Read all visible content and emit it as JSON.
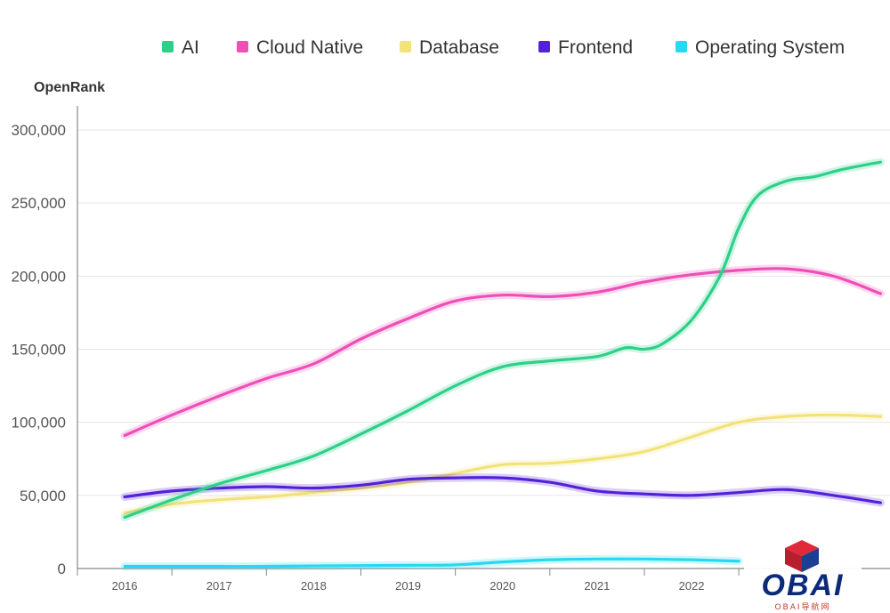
{
  "chart_data": {
    "type": "line",
    "ylabel": "OpenRank",
    "xlabel": "",
    "ylim": [
      0,
      300000
    ],
    "yticks": [
      0,
      50000,
      100000,
      150000,
      200000,
      250000,
      300000
    ],
    "ytick_labels": [
      "0",
      "50,000",
      "100,000",
      "150,000",
      "200,000",
      "250,000",
      "300,000"
    ],
    "categories": [
      "2016",
      "2017",
      "2018",
      "2019",
      "2020",
      "2021",
      "2022"
    ],
    "x_range": [
      2015.5,
      2024.1
    ],
    "grid": true,
    "legend_position": "top",
    "series": [
      {
        "name": "AI",
        "color": "#2ecf8a",
        "x": [
          2016,
          2016.5,
          2017,
          2017.5,
          2018,
          2018.5,
          2019,
          2019.5,
          2020,
          2020.5,
          2021,
          2021.3,
          2021.5,
          2021.7,
          2022,
          2022.3,
          2022.5,
          2022.7,
          2023,
          2023.3,
          2023.6,
          2024
        ],
        "values": [
          35000,
          47000,
          58000,
          67000,
          77000,
          92000,
          108000,
          125000,
          138000,
          142000,
          145000,
          151000,
          150000,
          154000,
          170000,
          200000,
          233000,
          255000,
          265000,
          268000,
          273000,
          278000
        ]
      },
      {
        "name": "Cloud Native",
        "color": "#ee4fb7",
        "x": [
          2016,
          2016.5,
          2017,
          2017.5,
          2018,
          2018.5,
          2019,
          2019.5,
          2020,
          2020.5,
          2021,
          2021.5,
          2022,
          2022.5,
          2023,
          2023.5,
          2024
        ],
        "values": [
          91000,
          105000,
          118000,
          130000,
          140000,
          157000,
          171000,
          183000,
          187000,
          186000,
          189000,
          196000,
          201000,
          204000,
          205000,
          200000,
          188000
        ]
      },
      {
        "name": "Database",
        "color": "#f2e27a",
        "x": [
          2016,
          2016.5,
          2017,
          2017.5,
          2018,
          2018.5,
          2019,
          2019.5,
          2020,
          2020.5,
          2021,
          2021.5,
          2022,
          2022.5,
          2023,
          2023.5,
          2024
        ],
        "values": [
          38000,
          44000,
          47000,
          49000,
          52000,
          55000,
          59000,
          65000,
          71000,
          72000,
          75000,
          80000,
          90000,
          100000,
          104000,
          105000,
          104000
        ]
      },
      {
        "name": "Frontend",
        "color": "#5421d8",
        "x": [
          2016,
          2016.5,
          2017,
          2017.5,
          2018,
          2018.5,
          2019,
          2019.5,
          2020,
          2020.5,
          2021,
          2021.5,
          2022,
          2022.5,
          2023,
          2023.5,
          2024
        ],
        "values": [
          49000,
          53000,
          55000,
          56000,
          55000,
          57000,
          61000,
          62000,
          62000,
          59000,
          53000,
          51000,
          50000,
          52000,
          54000,
          50000,
          45000
        ]
      },
      {
        "name": "Operating System",
        "color": "#25d9f0",
        "x": [
          2016,
          2016.5,
          2017,
          2017.5,
          2018,
          2018.5,
          2019,
          2019.5,
          2020,
          2020.5,
          2021,
          2021.5,
          2022,
          2022.5
        ],
        "values": [
          1500,
          1500,
          1500,
          1500,
          1800,
          2000,
          2200,
          2500,
          4500,
          6000,
          6500,
          6500,
          6000,
          5000
        ]
      }
    ]
  },
  "watermark": {
    "word": "OBAI",
    "sub": "OBAI导航网"
  }
}
